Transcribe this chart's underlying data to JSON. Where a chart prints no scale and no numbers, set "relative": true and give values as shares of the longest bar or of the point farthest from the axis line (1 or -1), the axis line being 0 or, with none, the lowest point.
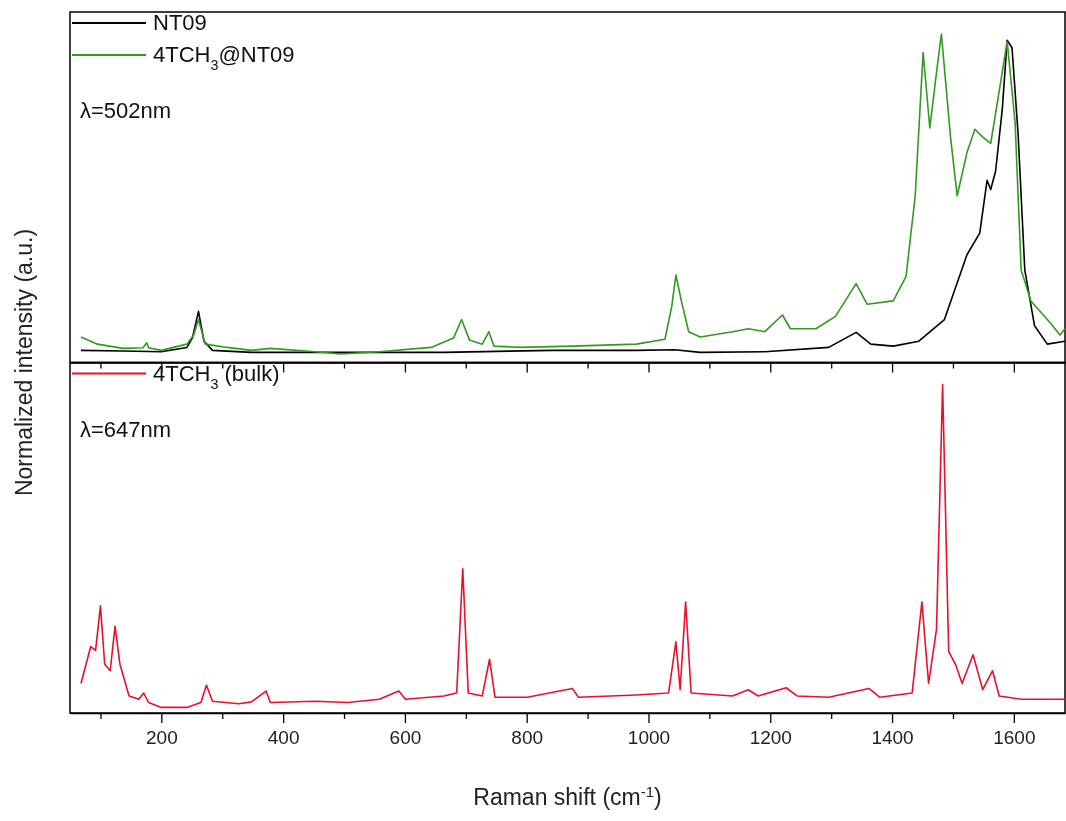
{
  "chart_data": [
    {
      "type": "line",
      "relative": true,
      "ylabel": "Normalized intensity (a.u.)",
      "xlim": [
        50,
        1684
      ],
      "xticks": [
        {
          "value": 100,
          "label": null
        },
        200,
        {
          "value": 300,
          "label": null
        },
        400,
        {
          "value": 500,
          "label": null
        },
        600,
        {
          "value": 700,
          "label": null
        },
        800,
        {
          "value": 900,
          "label": null
        },
        1000,
        {
          "value": 1100,
          "label": null
        },
        1200,
        {
          "value": 1300,
          "label": null
        },
        1400,
        {
          "value": 1500,
          "label": null
        },
        1600
      ],
      "tick_labels": false,
      "legend": "top left",
      "grid": false,
      "annotations": [
        "λ=502nm"
      ],
      "series": [
        {
          "name": "NT09",
          "color": "#000000",
          "x": [
            68,
            137,
            200,
            242,
            251,
            261,
            270,
            284,
            348,
            453,
            558,
            664,
            843,
            980,
            1043,
            1085,
            1191,
            1296,
            1341,
            1365,
            1402,
            1444,
            1486,
            1523,
            1544,
            1556,
            1562,
            1570,
            1581,
            1589,
            1597,
            1607,
            1618,
            1634,
            1655,
            1684
          ],
          "values": [
            0.034,
            0.032,
            0.03,
            0.043,
            0.072,
            0.153,
            0.062,
            0.034,
            0.028,
            0.028,
            0.028,
            0.028,
            0.034,
            0.034,
            0.036,
            0.028,
            0.03,
            0.043,
            0.089,
            0.053,
            0.047,
            0.062,
            0.128,
            0.326,
            0.392,
            0.553,
            0.525,
            0.581,
            0.77,
            0.981,
            0.958,
            0.694,
            0.279,
            0.109,
            0.053,
            0.062
          ]
        },
        {
          "name": "4TCH$_{3}$@NT09",
          "color": "#339922",
          "x": [
            68,
            95,
            137,
            170,
            176,
            179,
            200,
            242,
            253,
            261,
            272,
            308,
            348,
            379,
            453,
            495,
            558,
            643,
            680,
            693,
            706,
            727,
            738,
            746,
            790,
            875,
            980,
            1027,
            1038,
            1045,
            1054,
            1066,
            1085,
            1138,
            1164,
            1191,
            1220,
            1233,
            1275,
            1307,
            1341,
            1359,
            1402,
            1423,
            1438,
            1451,
            1462,
            1473,
            1481,
            1496,
            1507,
            1523,
            1536,
            1549,
            1562,
            1576,
            1589,
            1602,
            1612,
            1628,
            1655,
            1676,
            1684
          ],
          "values": [
            0.075,
            0.053,
            0.04,
            0.042,
            0.057,
            0.042,
            0.034,
            0.053,
            0.081,
            0.128,
            0.053,
            0.043,
            0.034,
            0.04,
            0.03,
            0.023,
            0.03,
            0.043,
            0.072,
            0.128,
            0.066,
            0.053,
            0.091,
            0.047,
            0.043,
            0.047,
            0.053,
            0.068,
            0.166,
            0.264,
            0.185,
            0.091,
            0.075,
            0.091,
            0.1,
            0.091,
            0.142,
            0.1,
            0.1,
            0.138,
            0.238,
            0.175,
            0.185,
            0.26,
            0.506,
            0.943,
            0.713,
            0.883,
            1.0,
            0.685,
            0.506,
            0.638,
            0.709,
            0.685,
            0.666,
            0.826,
            0.977,
            0.732,
            0.279,
            0.185,
            0.128,
            0.081,
            0.1
          ]
        }
      ]
    },
    {
      "type": "line",
      "relative": true,
      "xlabel": "Raman shift (cm$^{-1}$)",
      "xlim": [
        50,
        1684
      ],
      "xticks": [
        {
          "value": 100,
          "label": null
        },
        200,
        {
          "value": 300,
          "label": null
        },
        400,
        {
          "value": 500,
          "label": null
        },
        600,
        {
          "value": 700,
          "label": null
        },
        800,
        {
          "value": 900,
          "label": null
        },
        1000,
        {
          "value": 1100,
          "label": null
        },
        1200,
        {
          "value": 1300,
          "label": null
        },
        1400,
        {
          "value": 1500,
          "label": null
        },
        1600
      ],
      "tick_labels": "x",
      "legend": "top left",
      "grid": false,
      "annotations": [
        "λ=647nm"
      ],
      "series": [
        {
          "name": "4TCH$_{3}$ (bulk)",
          "color": "#e8112d",
          "x": [
            68,
            84,
            92,
            100,
            107,
            116,
            124,
            132,
            147,
            163,
            171,
            179,
            200,
            242,
            265,
            274,
            284,
            327,
            348,
            372,
            379,
            453,
            506,
            558,
            590,
            601,
            664,
            685,
            695,
            704,
            727,
            739,
            748,
            801,
            875,
            885,
            980,
            1033,
            1045,
            1052,
            1061,
            1070,
            1138,
            1164,
            1180,
            1226,
            1244,
            1296,
            1362,
            1380,
            1433,
            1449,
            1460,
            1473,
            1483,
            1493,
            1505,
            1515,
            1533,
            1549,
            1565,
            1576,
            1612,
            1684
          ],
          "values": [
            0.087,
            0.2,
            0.188,
            0.324,
            0.146,
            0.126,
            0.262,
            0.146,
            0.049,
            0.039,
            0.058,
            0.029,
            0.014,
            0.014,
            0.029,
            0.082,
            0.033,
            0.025,
            0.031,
            0.064,
            0.029,
            0.033,
            0.029,
            0.039,
            0.064,
            0.039,
            0.049,
            0.058,
            0.437,
            0.058,
            0.049,
            0.161,
            0.045,
            0.045,
            0.072,
            0.045,
            0.052,
            0.058,
            0.214,
            0.068,
            0.336,
            0.058,
            0.049,
            0.068,
            0.049,
            0.074,
            0.049,
            0.045,
            0.072,
            0.045,
            0.058,
            0.336,
            0.087,
            0.253,
            1.0,
            0.184,
            0.142,
            0.087,
            0.175,
            0.068,
            0.126,
            0.049,
            0.039,
            0.039
          ]
        }
      ]
    }
  ]
}
